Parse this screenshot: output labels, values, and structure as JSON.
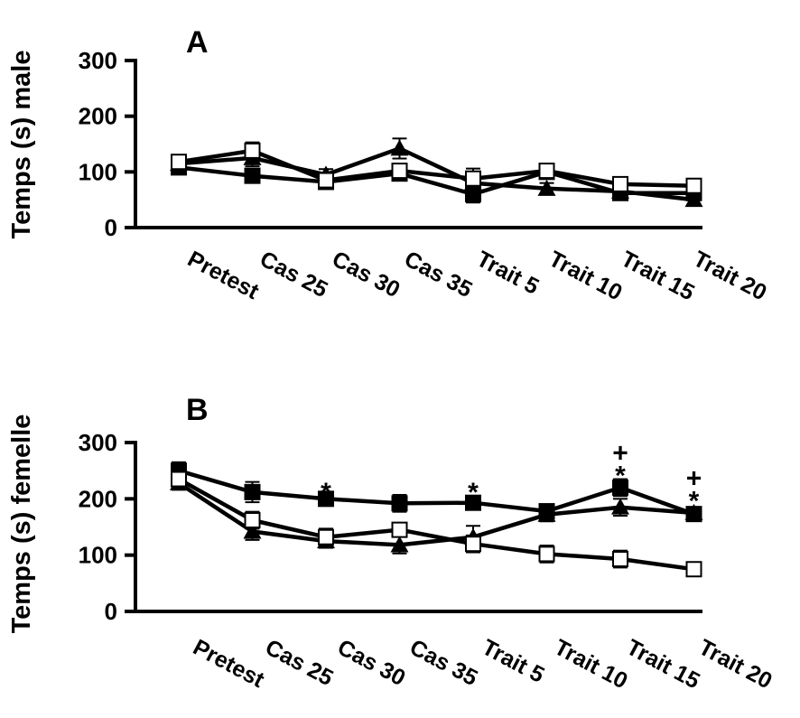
{
  "chart_data": [
    {
      "type": "line",
      "panel_label": "A",
      "ylabel": "Temps (s) male",
      "xlabel": "",
      "ylim": [
        0,
        300
      ],
      "yticks": [
        "300",
        "200",
        "100",
        "0"
      ],
      "categories": [
        "Pretest",
        "Cas 25",
        "Cas 30",
        "Cas 35",
        "Trait 5",
        "Trait 10",
        "Trait 15",
        "Trait 20"
      ],
      "series": [
        {
          "marker": "filled-square",
          "values": [
            108,
            93,
            82,
            97,
            60,
            100,
            62,
            62
          ],
          "errors": [
            8,
            12,
            8,
            10,
            15,
            10,
            8,
            10
          ]
        },
        {
          "marker": "filled-triangle",
          "values": [
            115,
            125,
            95,
            142,
            80,
            70,
            65,
            50
          ],
          "errors": [
            10,
            15,
            10,
            18,
            12,
            10,
            10,
            10
          ]
        },
        {
          "marker": "open-square",
          "values": [
            118,
            138,
            85,
            102,
            88,
            102,
            78,
            75
          ],
          "errors": [
            12,
            15,
            10,
            10,
            18,
            10,
            10,
            10
          ]
        }
      ],
      "annotations": []
    },
    {
      "type": "line",
      "panel_label": "B",
      "ylabel": "Temps (s) femelle",
      "xlabel": "",
      "ylim": [
        0,
        300
      ],
      "yticks": [
        "300",
        "200",
        "100",
        "0"
      ],
      "categories": [
        "Pretest",
        "Cas 25",
        "Cas 30",
        "Cas 35",
        "Trait 5",
        "Trait 10",
        "Trait 15",
        "Trait 20"
      ],
      "series": [
        {
          "marker": "filled-square",
          "values": [
            250,
            212,
            200,
            192,
            193,
            178,
            220,
            173
          ],
          "errors": [
            15,
            18,
            10,
            15,
            12,
            10,
            15,
            10
          ]
        },
        {
          "marker": "filled-triangle",
          "values": [
            228,
            142,
            125,
            118,
            132,
            172,
            185,
            175
          ],
          "errors": [
            12,
            15,
            12,
            15,
            20,
            12,
            15,
            10
          ]
        },
        {
          "marker": "open-square",
          "values": [
            235,
            162,
            132,
            145,
            120,
            102,
            93,
            75
          ],
          "errors": [
            15,
            15,
            15,
            12,
            15,
            15,
            15,
            10
          ]
        }
      ],
      "annotations": [
        {
          "category_index": 2,
          "text": "*",
          "value": 215
        },
        {
          "category_index": 4,
          "text": "*",
          "value": 215
        },
        {
          "category_index": 6,
          "text": "*",
          "value": 245
        },
        {
          "category_index": 6,
          "text": "+",
          "value": 285
        },
        {
          "category_index": 7,
          "text": "*",
          "value": 200
        },
        {
          "category_index": 7,
          "text": "+",
          "value": 240
        }
      ]
    }
  ]
}
